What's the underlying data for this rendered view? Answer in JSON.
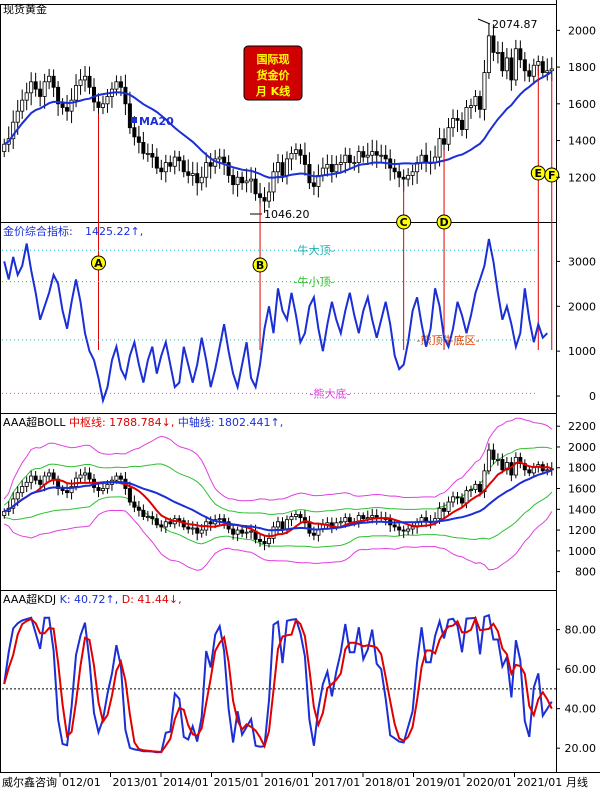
{
  "window": {
    "title": "现货黄金",
    "badge_lines": [
      "国际现",
      "货金价",
      "月 K线"
    ],
    "footer_left": "威尔鑫咨询",
    "period_label": "月线"
  },
  "colors": {
    "up": "#000000",
    "ma20": "#1a2fd6",
    "red": "#e00000",
    "magenta": "#e040e0",
    "green": "#30c030",
    "cyan": "#20b0b0",
    "axis": "#000000"
  },
  "chart_data": [
    {
      "type": "candlestick",
      "title": "现货黄金",
      "ylim": [
        1000,
        2100
      ],
      "y_ticks": [
        1200,
        1400,
        1600,
        1800,
        2000
      ],
      "ma_label": "MA20",
      "high_label": "2074.87",
      "low_label": "1046.20",
      "markers": [
        "A",
        "B",
        "C",
        "D",
        "E",
        "F"
      ],
      "close": [
        1380,
        1410,
        1500,
        1560,
        1620,
        1660,
        1720,
        1680,
        1640,
        1720,
        1750,
        1690,
        1600,
        1580,
        1560,
        1620,
        1700,
        1730,
        1750,
        1690,
        1610,
        1580,
        1600,
        1640,
        1680,
        1720,
        1690,
        1600,
        1470,
        1420,
        1390,
        1330,
        1330,
        1310,
        1250,
        1230,
        1280,
        1260,
        1310,
        1290,
        1230,
        1210,
        1220,
        1170,
        1200,
        1280,
        1260,
        1300,
        1310,
        1280,
        1210,
        1160,
        1200,
        1170,
        1180,
        1190,
        1110,
        1090,
        1070,
        1120,
        1230,
        1280,
        1210,
        1300,
        1330,
        1350,
        1320,
        1270,
        1170,
        1150,
        1210,
        1250,
        1270,
        1230,
        1270,
        1280,
        1320,
        1280,
        1280,
        1340,
        1310,
        1320,
        1340,
        1320,
        1320,
        1300,
        1250,
        1230,
        1200,
        1190,
        1210,
        1230,
        1280,
        1320,
        1280,
        1280,
        1310,
        1410,
        1380,
        1470,
        1520,
        1510,
        1460,
        1580,
        1590,
        1640,
        1570,
        1770,
        1970,
        1880,
        1880,
        1780,
        1850,
        1730,
        1900,
        1840,
        1780,
        1750,
        1810,
        1830,
        1770,
        1780,
        1790
      ],
      "ma20_label_series": "MA20"
    },
    {
      "type": "line",
      "title": "金价综合指标",
      "value_label": "1425.22",
      "ylim": [
        -200,
        3700
      ],
      "y_ticks": [
        0,
        1000,
        2000,
        3000
      ],
      "ref_lines": [
        {
          "label": "牛大顶",
          "value": 3250,
          "color": "#20b0b0"
        },
        {
          "label": "牛小顶",
          "value": 2550,
          "color": "#30c030"
        },
        {
          "label": "熊顶牛底区",
          "value": 1250,
          "color": "#20b0b0"
        },
        {
          "label": "熊大底",
          "value": 60,
          "color": "#e040e0"
        }
      ],
      "values": [
        3000,
        2600,
        3100,
        2700,
        2900,
        3400,
        2800,
        2300,
        1700,
        2000,
        2300,
        2700,
        2500,
        1900,
        1500,
        2100,
        2600,
        2100,
        1400,
        1000,
        800,
        400,
        -100,
        200,
        800,
        1100,
        600,
        400,
        900,
        1200,
        700,
        300,
        800,
        1100,
        500,
        900,
        1200,
        700,
        200,
        300,
        1100,
        700,
        300,
        700,
        1300,
        800,
        200,
        600,
        1100,
        1600,
        1000,
        500,
        200,
        700,
        1200,
        400,
        200,
        700,
        1500,
        2000,
        1400,
        2400,
        1900,
        1700,
        2300,
        1800,
        1200,
        1400,
        2000,
        2200,
        1500,
        1000,
        1600,
        2100,
        1700,
        1400,
        1900,
        2300,
        1800,
        1400,
        1900,
        2200,
        1700,
        1300,
        1700,
        2100,
        1600,
        900,
        600,
        700,
        1200,
        1900,
        2200,
        1600,
        1100,
        1500,
        2400,
        2000,
        1300,
        1100,
        1500,
        2100,
        1800,
        1400,
        1800,
        2300,
        2600,
        2900,
        3500,
        3000,
        2300,
        1700,
        2000,
        1600,
        1100,
        1400,
        2400,
        1700,
        1200,
        1600,
        1300,
        1400
      ]
    },
    {
      "type": "line",
      "title": "AAA超BOLL",
      "mid_label": "中枢线:",
      "mid_value": "1788.784",
      "axis_label": "中轴线:",
      "axis_value": "1802.441",
      "ylim": [
        700,
        2250
      ],
      "y_ticks": [
        800,
        1000,
        1200,
        1400,
        1600,
        1800,
        2000,
        2200
      ],
      "series": [
        {
          "name": "中枢线",
          "color": "#e00000"
        },
        {
          "name": "中轴线",
          "color": "#1a2fd6"
        }
      ]
    },
    {
      "type": "line",
      "title": "AAA超KDJ",
      "k_label": "K:",
      "k_value": "40.72",
      "d_label": "D:",
      "d_value": "41.44",
      "ylim": [
        12,
        96
      ],
      "y_ticks": [
        20.0,
        40.0,
        60.0,
        80.0
      ],
      "ref_line": 50,
      "series": [
        {
          "name": "K",
          "color": "#1a2fd6"
        },
        {
          "name": "D",
          "color": "#e00000"
        }
      ]
    }
  ],
  "x_axis": {
    "labels": [
      "012/01",
      "2013/01",
      "2014/01",
      "2015/01",
      "2016/01",
      "2017/01",
      "2018/01",
      "2019/01",
      "2020/01",
      "2021/01"
    ]
  }
}
